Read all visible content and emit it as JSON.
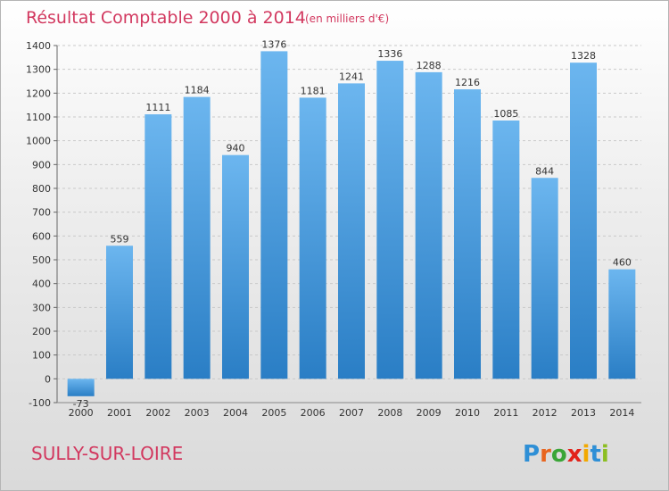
{
  "title": "Résultat Comptable 2000 à 2014",
  "subtitle": "(en milliers d'€)",
  "commune": "SULLY-SUR-LOIRE",
  "logo": {
    "letters": [
      "P",
      "r",
      "o",
      "x",
      "i",
      "t",
      "i"
    ],
    "colors": [
      "#2e8fd6",
      "#e8651f",
      "#3aa537",
      "#e2231a",
      "#f2a900",
      "#2e8fd6",
      "#8cbe22"
    ]
  },
  "colors": {
    "bar_top": "#6cb6ef",
    "bar_bottom": "#2a7ec5",
    "title": "#d2385f"
  },
  "chart_data": {
    "type": "bar",
    "categories": [
      "2000",
      "2001",
      "2002",
      "2003",
      "2004",
      "2005",
      "2006",
      "2007",
      "2008",
      "2009",
      "2010",
      "2011",
      "2012",
      "2013",
      "2014"
    ],
    "values": [
      -73,
      559,
      1111,
      1184,
      940,
      1376,
      1181,
      1241,
      1336,
      1288,
      1216,
      1085,
      844,
      1328,
      460
    ],
    "labels": [
      "-73",
      "559",
      "1111",
      "1184",
      "940",
      "1376",
      "1181",
      "1241",
      "1336",
      "1288",
      "1216",
      "1085",
      "844",
      "1328",
      "460"
    ],
    "ylim": [
      -100,
      1400
    ],
    "yticks": [
      -100,
      0,
      100,
      200,
      300,
      400,
      500,
      600,
      700,
      800,
      900,
      1000,
      1100,
      1200,
      1300,
      1400
    ],
    "grid": true
  }
}
